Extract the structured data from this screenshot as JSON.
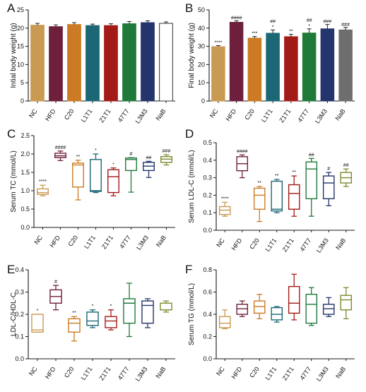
{
  "chart_data": [
    {
      "panel_label": "A",
      "type": "bar",
      "ylabel": "Intial body weight (g)",
      "ylim": [
        0,
        25
      ],
      "yticks": [
        0,
        5,
        10,
        15,
        20,
        25
      ],
      "categories": [
        "NC",
        "HFD",
        "C20",
        "L1T1",
        "Z1T1",
        "47T7",
        "L3M3",
        "NaB"
      ],
      "values": [
        20.8,
        20.4,
        21.0,
        20.7,
        20.7,
        21.2,
        21.5,
        21.3
      ],
      "errors": [
        0.5,
        0.5,
        0.5,
        0.4,
        0.5,
        0.6,
        0.5,
        0.4
      ],
      "annotations": [
        "",
        "",
        "",
        "",
        "",
        "",
        "",
        ""
      ]
    },
    {
      "panel_label": "B",
      "type": "bar",
      "ylabel": "Final body weight (g)",
      "ylim": [
        0,
        50
      ],
      "yticks": [
        0,
        10,
        20,
        30,
        40,
        50
      ],
      "categories": [
        "NC",
        "HFD",
        "C20",
        "L1T1",
        "Z1T1",
        "47T7",
        "L3M3",
        "NaB"
      ],
      "values": [
        29.8,
        43.2,
        34.5,
        37.2,
        35.3,
        37.3,
        39.6,
        39.0
      ],
      "errors": [
        0.6,
        0.8,
        0.9,
        1.8,
        1.3,
        2.3,
        2.4,
        1.4
      ],
      "annotations": [
        "****",
        "####",
        "***",
        "##\n*",
        "**",
        "##\n*",
        "###",
        "###"
      ]
    },
    {
      "panel_label": "C",
      "type": "box",
      "ylabel": "Serum TC (mmol/L)",
      "ylim": [
        0,
        2.5
      ],
      "yticks": [
        0.0,
        0.5,
        1.0,
        1.5,
        2.0,
        2.5
      ],
      "categories": [
        "NC",
        "HFD",
        "C20",
        "L1T1",
        "Z1T1",
        "47T7",
        "L3M3",
        "NaB"
      ],
      "boxes": [
        {
          "min": 0.86,
          "q1": 0.9,
          "median": 0.95,
          "q3": 1.05,
          "max": 1.15
        },
        {
          "min": 1.82,
          "q1": 1.9,
          "median": 1.95,
          "q3": 2.02,
          "max": 2.08
        },
        {
          "min": 0.75,
          "q1": 1.1,
          "median": 1.7,
          "q3": 1.75,
          "max": 1.83
        },
        {
          "min": 0.95,
          "q1": 0.98,
          "median": 1.0,
          "q3": 1.85,
          "max": 2.0
        },
        {
          "min": 0.86,
          "q1": 0.95,
          "median": 1.38,
          "q3": 1.57,
          "max": 1.62
        },
        {
          "min": 0.96,
          "q1": 1.55,
          "median": 1.85,
          "q3": 1.89,
          "max": 1.9
        },
        {
          "min": 1.36,
          "q1": 1.55,
          "median": 1.67,
          "q3": 1.77,
          "max": 1.8
        },
        {
          "min": 1.7,
          "q1": 1.77,
          "median": 1.86,
          "q3": 1.93,
          "max": 1.98
        }
      ],
      "annotations": [
        "****",
        "####",
        "**",
        "*",
        "*",
        "#",
        "##",
        "###"
      ]
    },
    {
      "panel_label": "D",
      "type": "box",
      "ylabel": "Serum LDL-C (mmol/L)",
      "ylim": [
        0,
        0.5
      ],
      "yticks": [
        0.0,
        0.1,
        0.2,
        0.3,
        0.4,
        0.5
      ],
      "categories": [
        "NC",
        "HFD",
        "C20",
        "L1T1",
        "Z1T1",
        "47T7",
        "L3M3",
        "NaB"
      ],
      "boxes": [
        {
          "min": 0.08,
          "q1": 0.09,
          "median": 0.115,
          "q3": 0.135,
          "max": 0.16
        },
        {
          "min": 0.3,
          "q1": 0.34,
          "median": 0.38,
          "q3": 0.42,
          "max": 0.43
        },
        {
          "min": 0.05,
          "q1": 0.12,
          "median": 0.2,
          "q3": 0.24,
          "max": 0.25
        },
        {
          "min": 0.1,
          "q1": 0.11,
          "median": 0.12,
          "q3": 0.28,
          "max": 0.29
        },
        {
          "min": 0.08,
          "q1": 0.12,
          "median": 0.21,
          "q3": 0.26,
          "max": 0.31
        },
        {
          "min": 0.08,
          "q1": 0.18,
          "median": 0.35,
          "q3": 0.39,
          "max": 0.41
        },
        {
          "min": 0.14,
          "q1": 0.18,
          "median": 0.27,
          "q3": 0.31,
          "max": 0.33
        },
        {
          "min": 0.25,
          "q1": 0.27,
          "median": 0.3,
          "q3": 0.33,
          "max": 0.35
        }
      ],
      "annotations": [
        "****",
        "####",
        "**",
        "**",
        "**",
        "##",
        "#",
        "##"
      ]
    },
    {
      "panel_label": "E",
      "type": "box",
      "ylabel": "LDL-C/HDL-C",
      "ylim": [
        0,
        0.4
      ],
      "yticks": [
        0.0,
        0.1,
        0.2,
        0.3,
        0.4
      ],
      "categories": [
        "NC",
        "HFD",
        "C20",
        "L1T1",
        "Z1T1",
        "47T7",
        "L3M3",
        "NaB"
      ],
      "boxes": [
        {
          "min": 0.12,
          "q1": 0.12,
          "median": 0.13,
          "q3": 0.2,
          "max": 0.2
        },
        {
          "min": 0.22,
          "q1": 0.25,
          "median": 0.28,
          "q3": 0.31,
          "max": 0.33
        },
        {
          "min": 0.08,
          "q1": 0.12,
          "median": 0.16,
          "q3": 0.18,
          "max": 0.19
        },
        {
          "min": 0.14,
          "q1": 0.15,
          "median": 0.17,
          "q3": 0.21,
          "max": 0.22
        },
        {
          "min": 0.13,
          "q1": 0.14,
          "median": 0.17,
          "q3": 0.19,
          "max": 0.22
        },
        {
          "min": 0.1,
          "q1": 0.16,
          "median": 0.25,
          "q3": 0.27,
          "max": 0.34
        },
        {
          "min": 0.14,
          "q1": 0.16,
          "median": 0.24,
          "q3": 0.26,
          "max": 0.27
        },
        {
          "min": 0.21,
          "q1": 0.22,
          "median": 0.22,
          "q3": 0.25,
          "max": 0.26
        }
      ],
      "annotations": [
        "*",
        "#",
        "**",
        "*",
        "*",
        "",
        "",
        ""
      ]
    },
    {
      "panel_label": "F",
      "type": "box",
      "ylabel": "Serum TG (mmol/L)",
      "ylim": [
        0,
        0.8
      ],
      "yticks": [
        0.0,
        0.2,
        0.4,
        0.6,
        0.8
      ],
      "categories": [
        "NC",
        "HFD",
        "C20",
        "L1T1",
        "Z1T1",
        "47T7",
        "L3M3",
        "NaB"
      ],
      "boxes": [
        {
          "min": 0.27,
          "q1": 0.28,
          "median": 0.32,
          "q3": 0.38,
          "max": 0.44
        },
        {
          "min": 0.38,
          "q1": 0.4,
          "median": 0.45,
          "q3": 0.49,
          "max": 0.52
        },
        {
          "min": 0.36,
          "q1": 0.41,
          "median": 0.47,
          "q3": 0.52,
          "max": 0.58
        },
        {
          "min": 0.33,
          "q1": 0.35,
          "median": 0.4,
          "q3": 0.46,
          "max": 0.47
        },
        {
          "min": 0.35,
          "q1": 0.41,
          "median": 0.5,
          "q3": 0.65,
          "max": 0.76
        },
        {
          "min": 0.3,
          "q1": 0.32,
          "median": 0.49,
          "q3": 0.58,
          "max": 0.64
        },
        {
          "min": 0.38,
          "q1": 0.4,
          "median": 0.45,
          "q3": 0.49,
          "max": 0.55
        },
        {
          "min": 0.36,
          "q1": 0.44,
          "median": 0.53,
          "q3": 0.57,
          "max": 0.64
        }
      ],
      "annotations": [
        "",
        "",
        "",
        "",
        "",
        "",
        "",
        ""
      ]
    }
  ],
  "colors": {
    "NC": "#c99a52",
    "HFD": "#6e1f3b",
    "C20": "#cc7a24",
    "L1T1": "#1b6775",
    "Z1T1": "#a31b17",
    "47T7": "#1f7a3a",
    "L3M3": "#24356c",
    "NaB": "#6e6e6e",
    "NaB_box": "#7b8c2f",
    "axis": "#1a1a1a"
  }
}
